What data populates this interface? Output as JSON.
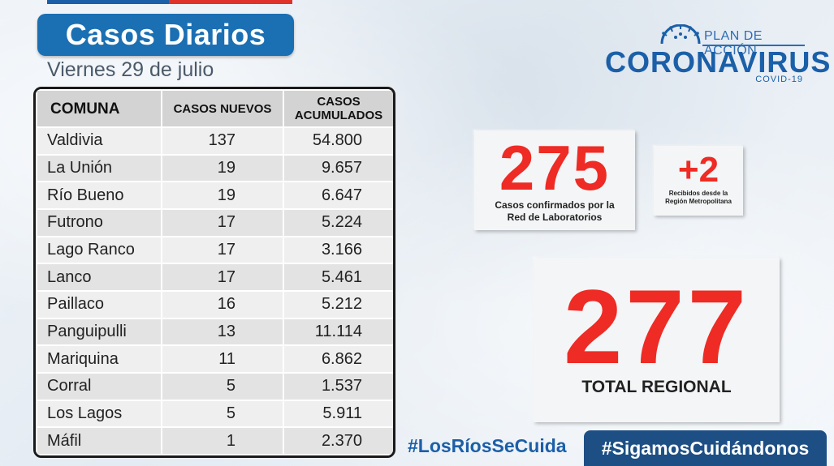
{
  "header": {
    "title": "Casos Diarios",
    "date": "Viernes 29 de julio"
  },
  "logo": {
    "plan": "PLAN DE ACCIÓN",
    "name": "CORONAVIRUS",
    "sub": "COVID-19"
  },
  "table": {
    "headers": {
      "comuna": "COMUNA",
      "nuevos": "CASOS NUEVOS",
      "acumulados_1": "CASOS",
      "acumulados_2": "ACUMULADOS"
    },
    "rows": [
      {
        "comuna": "Valdivia",
        "nuevos": "137",
        "acumulados": "54.800"
      },
      {
        "comuna": "La Unión",
        "nuevos": "19",
        "acumulados": "9.657"
      },
      {
        "comuna": "Río Bueno",
        "nuevos": "19",
        "acumulados": "6.647"
      },
      {
        "comuna": "Futrono",
        "nuevos": "17",
        "acumulados": "5.224"
      },
      {
        "comuna": "Lago Ranco",
        "nuevos": "17",
        "acumulados": "3.166"
      },
      {
        "comuna": "Lanco",
        "nuevos": "17",
        "acumulados": "5.461"
      },
      {
        "comuna": "Paillaco",
        "nuevos": "16",
        "acumulados": "5.212"
      },
      {
        "comuna": "Panguipulli",
        "nuevos": "13",
        "acumulados": "11.114"
      },
      {
        "comuna": "Mariquina",
        "nuevos": "11",
        "acumulados": "6.862"
      },
      {
        "comuna": "Corral",
        "nuevos": "5",
        "acumulados": "1.537"
      },
      {
        "comuna": "Los Lagos",
        "nuevos": "5",
        "acumulados": "5.911"
      },
      {
        "comuna": "Máfil",
        "nuevos": "1",
        "acumulados": "2.370"
      }
    ]
  },
  "cards": {
    "confirmed": {
      "value": "275",
      "caption_1": "Casos confirmados por la",
      "caption_2": "Red de Laboratorios"
    },
    "received": {
      "value": "+2",
      "caption_1": "Recibidos desde la",
      "caption_2": "Región Metropolitana"
    },
    "total": {
      "value": "277",
      "caption": "TOTAL REGIONAL"
    }
  },
  "hashtags": {
    "first": "#LosRíosSeCuida",
    "second": "#SigamosCuidándonos"
  },
  "colors": {
    "brand_blue": "#1b6fb3",
    "accent_red": "#ee2b24",
    "hashtag_bg": "#1d4f85"
  }
}
